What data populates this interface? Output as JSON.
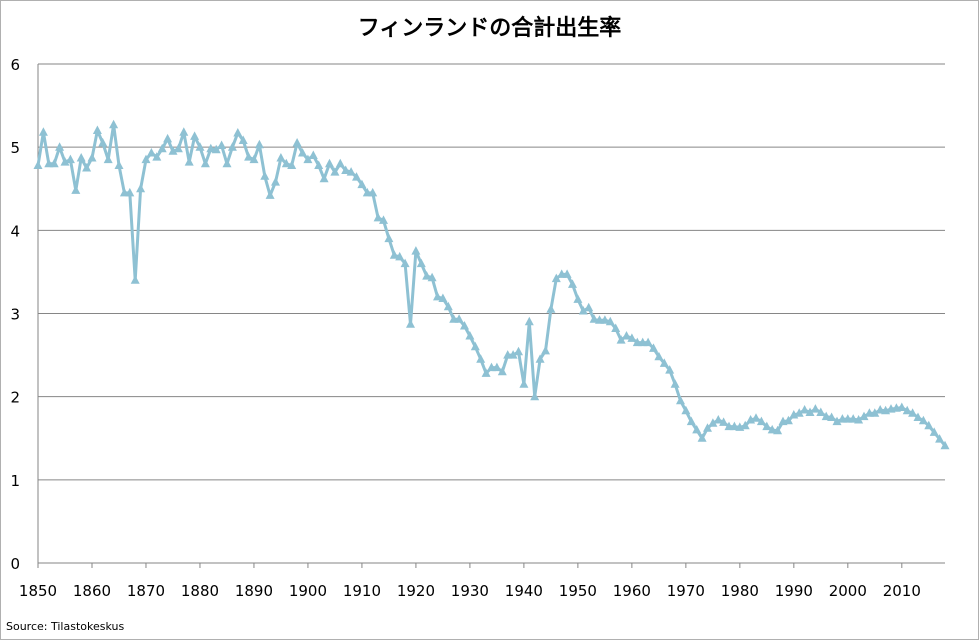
{
  "chart_data": {
    "type": "line",
    "title": "フィンランドの合計出生率",
    "source": "Source: Tilastokeskus",
    "xlabel": "",
    "ylabel": "",
    "xlim": [
      1850,
      2018
    ],
    "ylim": [
      0,
      6
    ],
    "y_ticks": [
      "0",
      "1",
      "2",
      "3",
      "4",
      "5",
      "6"
    ],
    "x_ticks": [
      "1850",
      "1860",
      "1870",
      "1880",
      "1890",
      "1900",
      "1910",
      "1920",
      "1930",
      "1940",
      "1950",
      "1960",
      "1970",
      "1980",
      "1990",
      "2000",
      "2010"
    ],
    "grid": true,
    "legend": "none",
    "marker": "triangle",
    "line_color": "#8EC1D3",
    "series": [
      {
        "name": "",
        "x": [
          1850,
          1851,
          1852,
          1853,
          1854,
          1855,
          1856,
          1857,
          1858,
          1859,
          1860,
          1861,
          1862,
          1863,
          1864,
          1865,
          1866,
          1867,
          1868,
          1869,
          1870,
          1871,
          1872,
          1873,
          1874,
          1875,
          1876,
          1877,
          1878,
          1879,
          1880,
          1881,
          1882,
          1883,
          1884,
          1885,
          1886,
          1887,
          1888,
          1889,
          1890,
          1891,
          1892,
          1893,
          1894,
          1895,
          1896,
          1897,
          1898,
          1899,
          1900,
          1901,
          1902,
          1903,
          1904,
          1905,
          1906,
          1907,
          1908,
          1909,
          1910,
          1911,
          1912,
          1913,
          1914,
          1915,
          1916,
          1917,
          1918,
          1919,
          1920,
          1921,
          1922,
          1923,
          1924,
          1925,
          1926,
          1927,
          1928,
          1929,
          1930,
          1931,
          1932,
          1933,
          1934,
          1935,
          1936,
          1937,
          1938,
          1939,
          1940,
          1941,
          1942,
          1943,
          1944,
          1945,
          1946,
          1947,
          1948,
          1949,
          1950,
          1951,
          1952,
          1953,
          1954,
          1955,
          1956,
          1957,
          1958,
          1959,
          1960,
          1961,
          1962,
          1963,
          1964,
          1965,
          1966,
          1967,
          1968,
          1969,
          1970,
          1971,
          1972,
          1973,
          1974,
          1975,
          1976,
          1977,
          1978,
          1979,
          1980,
          1981,
          1982,
          1983,
          1984,
          1985,
          1986,
          1987,
          1988,
          1989,
          1990,
          1991,
          1992,
          1993,
          1994,
          1995,
          1996,
          1997,
          1998,
          1999,
          2000,
          2001,
          2002,
          2003,
          2004,
          2005,
          2006,
          2007,
          2008,
          2009,
          2010,
          2011,
          2012,
          2013,
          2014,
          2015,
          2016,
          2017,
          2018
        ],
        "y": [
          4.78,
          5.18,
          4.8,
          4.8,
          5.0,
          4.82,
          4.85,
          4.48,
          4.87,
          4.75,
          4.87,
          5.2,
          5.05,
          4.85,
          5.27,
          4.78,
          4.45,
          4.45,
          3.4,
          4.5,
          4.85,
          4.93,
          4.88,
          4.98,
          5.1,
          4.95,
          4.98,
          5.18,
          4.82,
          5.13,
          5.0,
          4.8,
          4.98,
          4.97,
          5.02,
          4.8,
          5.0,
          5.17,
          5.08,
          4.88,
          4.85,
          5.03,
          4.65,
          4.42,
          4.58,
          4.87,
          4.8,
          4.78,
          5.05,
          4.93,
          4.85,
          4.9,
          4.78,
          4.62,
          4.8,
          4.7,
          4.8,
          4.72,
          4.7,
          4.64,
          4.55,
          4.45,
          4.45,
          4.15,
          4.12,
          3.9,
          3.7,
          3.68,
          3.6,
          2.87,
          3.75,
          3.6,
          3.45,
          3.43,
          3.2,
          3.18,
          3.08,
          2.93,
          2.93,
          2.85,
          2.73,
          2.6,
          2.45,
          2.28,
          2.35,
          2.35,
          2.3,
          2.5,
          2.5,
          2.54,
          2.15,
          2.9,
          2.0,
          2.45,
          2.55,
          3.05,
          3.42,
          3.47,
          3.47,
          3.35,
          3.17,
          3.03,
          3.07,
          2.93,
          2.92,
          2.92,
          2.9,
          2.82,
          2.68,
          2.73,
          2.7,
          2.65,
          2.65,
          2.65,
          2.58,
          2.48,
          2.4,
          2.32,
          2.15,
          1.95,
          1.83,
          1.7,
          1.6,
          1.5,
          1.62,
          1.68,
          1.72,
          1.69,
          1.64,
          1.64,
          1.63,
          1.65,
          1.72,
          1.74,
          1.7,
          1.64,
          1.6,
          1.59,
          1.7,
          1.71,
          1.78,
          1.8,
          1.84,
          1.81,
          1.85,
          1.81,
          1.76,
          1.75,
          1.7,
          1.73,
          1.73,
          1.73,
          1.72,
          1.76,
          1.8,
          1.8,
          1.84,
          1.83,
          1.85,
          1.86,
          1.87,
          1.83,
          1.8,
          1.75,
          1.71,
          1.65,
          1.57,
          1.49,
          1.41
        ]
      }
    ]
  }
}
